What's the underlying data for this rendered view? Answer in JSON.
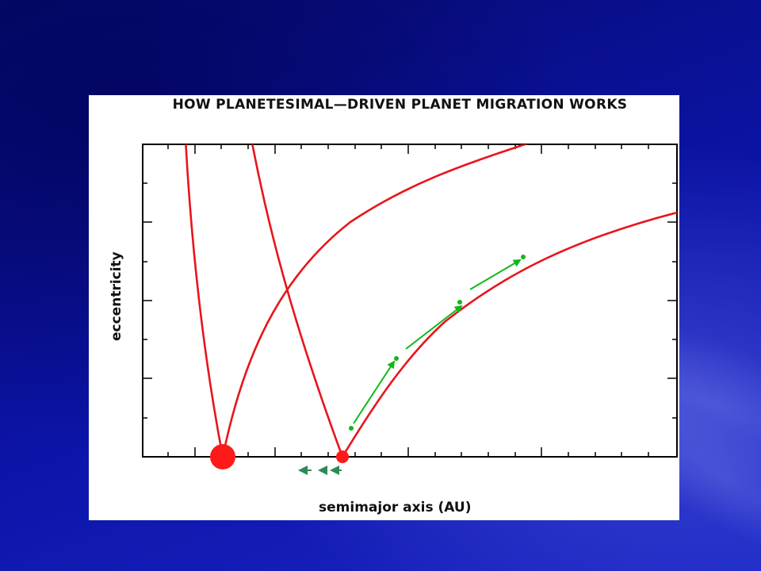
{
  "slide": {
    "title": "HOW PLANETESIMAL—DRIVEN PLANET MIGRATION WORKS",
    "xlabel": "semimajor axis (AU)",
    "ylabel": "eccentricity"
  },
  "colors": {
    "background": "#0b0f8f",
    "panel": "#ffffff",
    "curve": "#e8151b",
    "arrow": "#10b81a",
    "migration_arrow": "#2e8b57",
    "axes": "#000000"
  }
}
